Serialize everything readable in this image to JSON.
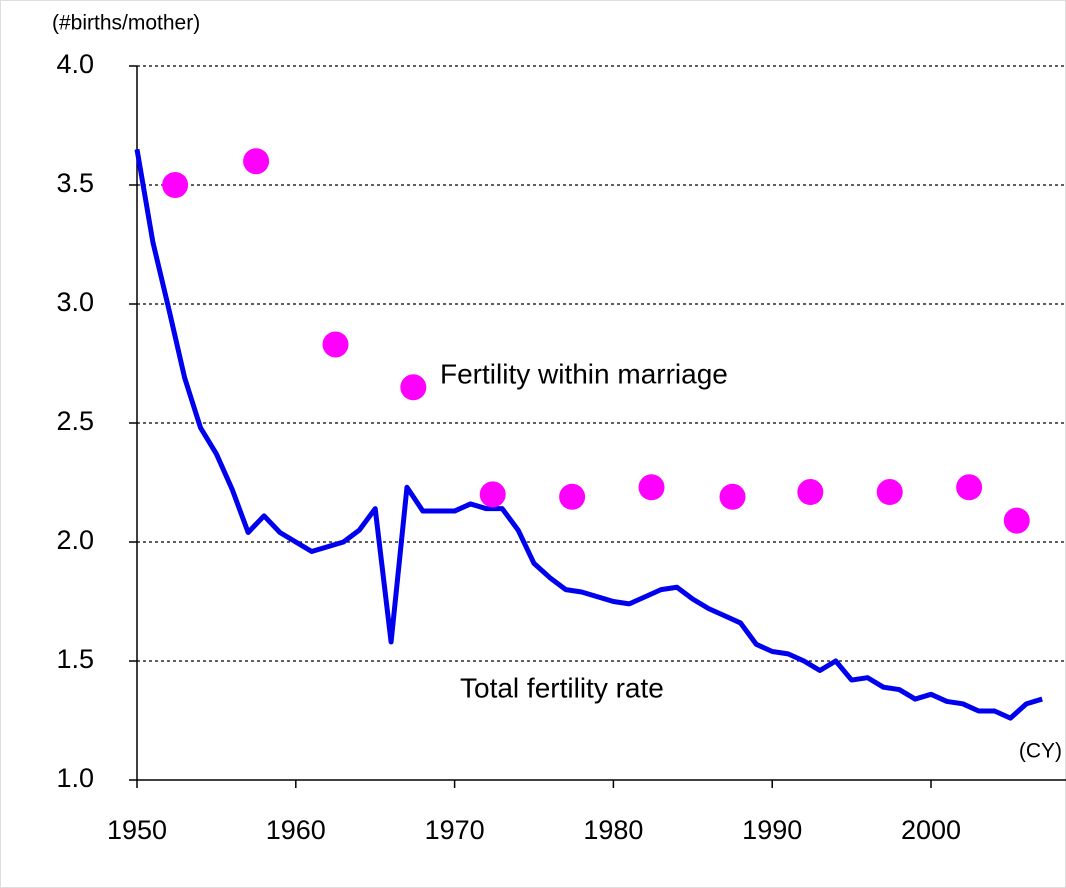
{
  "chart_data": {
    "type": "line",
    "y_label": "(#births/mother)",
    "x_label": "(CY)",
    "xlim": [
      1950,
      2008.5
    ],
    "ylim": [
      1.0,
      4.0
    ],
    "xticks": [
      1950,
      1960,
      1970,
      1980,
      1990,
      2000
    ],
    "yticks": [
      {
        "value": 1,
        "label": "1.0"
      },
      {
        "value": 1.5,
        "label": "1.5"
      },
      {
        "value": 2,
        "label": "2.0"
      },
      {
        "value": 2.5,
        "label": "2.5"
      },
      {
        "value": 3,
        "label": "3.0"
      },
      {
        "value": 3.5,
        "label": "3.5"
      },
      {
        "value": 4,
        "label": "4.0"
      }
    ],
    "grid": true,
    "series": [
      {
        "name": "Total fertility rate",
        "type": "line",
        "color": "#0000ee",
        "x": [
          1950,
          1951,
          1952,
          1953,
          1954,
          1955,
          1956,
          1957,
          1958,
          1959,
          1960,
          1961,
          1962,
          1963,
          1964,
          1965,
          1966,
          1967,
          1968,
          1969,
          1970,
          1971,
          1972,
          1973,
          1974,
          1975,
          1976,
          1977,
          1978,
          1979,
          1980,
          1981,
          1982,
          1983,
          1984,
          1985,
          1986,
          1987,
          1988,
          1989,
          1990,
          1991,
          1992,
          1993,
          1994,
          1995,
          1996,
          1997,
          1998,
          1999,
          2000,
          2001,
          2002,
          2003,
          2004,
          2005,
          2006,
          2007
        ],
        "values": [
          3.65,
          3.26,
          2.98,
          2.69,
          2.48,
          2.37,
          2.22,
          2.04,
          2.11,
          2.04,
          2.0,
          1.96,
          1.98,
          2.0,
          2.05,
          2.14,
          1.58,
          2.23,
          2.13,
          2.13,
          2.13,
          2.16,
          2.14,
          2.14,
          2.05,
          1.91,
          1.85,
          1.8,
          1.79,
          1.77,
          1.75,
          1.74,
          1.77,
          1.8,
          1.81,
          1.76,
          1.72,
          1.69,
          1.66,
          1.57,
          1.54,
          1.53,
          1.5,
          1.46,
          1.5,
          1.42,
          1.43,
          1.39,
          1.38,
          1.34,
          1.36,
          1.33,
          1.32,
          1.29,
          1.29,
          1.26,
          1.32,
          1.34
        ]
      },
      {
        "name": "Fertility within marriage",
        "type": "scatter",
        "color": "#ff00ff",
        "x": [
          1952.4,
          1957.5,
          1962.5,
          1967.4,
          1972.4,
          1977.4,
          1982.4,
          1987.5,
          1992.4,
          1997.4,
          2002.4,
          2005.4
        ],
        "values": [
          3.5,
          3.6,
          2.83,
          2.65,
          2.2,
          2.19,
          2.23,
          2.19,
          2.21,
          2.21,
          2.23,
          2.09
        ]
      }
    ]
  }
}
